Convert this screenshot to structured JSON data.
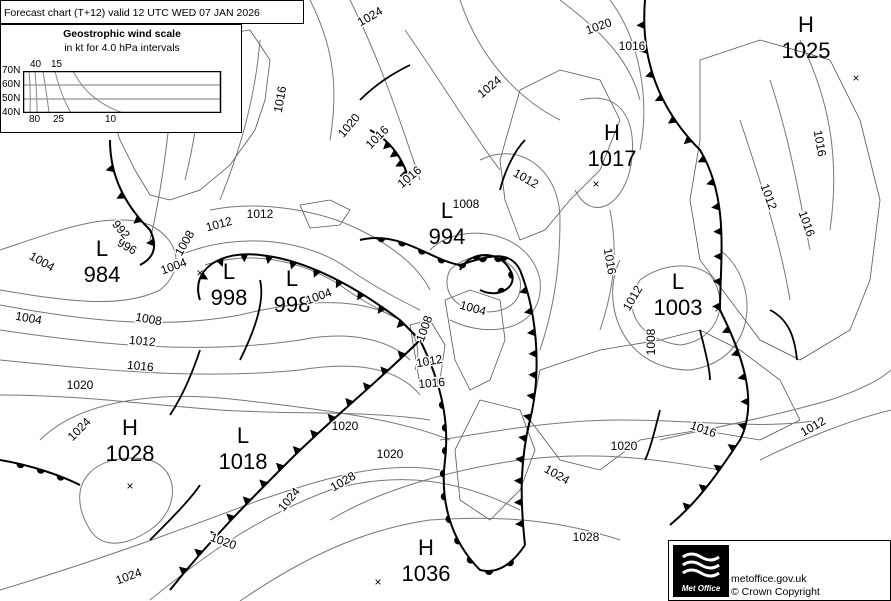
{
  "header": {
    "title": "Forecast chart (T+12) valid 12 UTC WED 07  JAN 2026"
  },
  "wind_scale": {
    "title": "Geostrophic wind scale",
    "subtitle": "in kt for 4.0 hPa intervals",
    "latitudes": [
      "70N",
      "60N",
      "50N",
      "40N"
    ],
    "top_speeds": [
      "40",
      "15"
    ],
    "bottom_speeds": [
      "80",
      "25",
      "10"
    ]
  },
  "pressure_centres": [
    {
      "type": "H",
      "value": "1025"
    },
    {
      "type": "H",
      "value": "1017"
    },
    {
      "type": "L",
      "value": "994"
    },
    {
      "type": "L",
      "value": "984"
    },
    {
      "type": "L",
      "value": "998"
    },
    {
      "type": "L",
      "value": "998"
    },
    {
      "type": "L",
      "value": "1003"
    },
    {
      "type": "H",
      "value": "1028"
    },
    {
      "type": "L",
      "value": "1018"
    },
    {
      "type": "H",
      "value": "1036"
    }
  ],
  "isobar_labels": [
    "1024",
    "1020",
    "1016",
    "1016",
    "1024",
    "1020",
    "1016",
    "1012",
    "1008",
    "1012",
    "1004",
    "996",
    "992",
    "1004",
    "1008",
    "1004",
    "1008",
    "1012",
    "1016",
    "1020",
    "1024",
    "1004",
    "1008",
    "1012",
    "1016",
    "1016",
    "1012",
    "1008",
    "1012",
    "1016",
    "1020",
    "1024",
    "1028",
    "1024",
    "1020",
    "1020",
    "1028",
    "1024",
    "1016",
    "1012",
    "1020",
    "1016",
    "1012",
    "1016",
    "1004"
  ],
  "footer": {
    "logo_text": "Met Office",
    "site": "metoffice.gov.uk",
    "copyright": "© Crown Copyright"
  },
  "colors": {
    "isobar": "#777777",
    "front": "#000000",
    "coast": "#555555",
    "background": "#ffffff"
  }
}
